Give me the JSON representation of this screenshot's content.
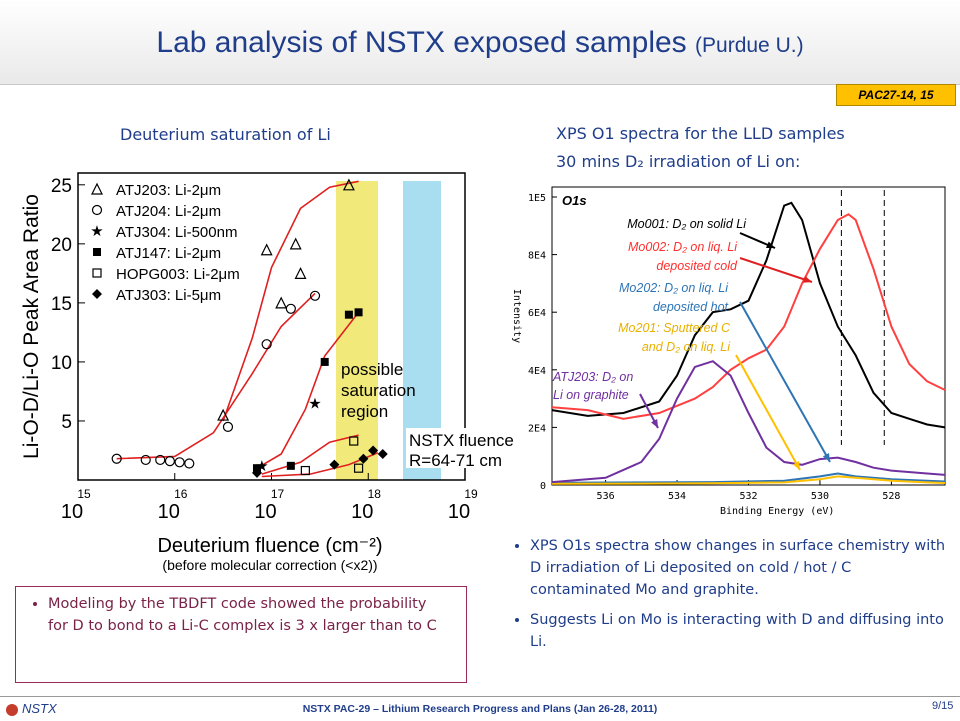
{
  "header": {
    "title": "Lab analysis of NSTX exposed samples",
    "subtitle": "(Purdue U.)",
    "badge": "PAC27-14, 15"
  },
  "left_section_title": "Deuterium saturation of Li",
  "right_section_title_line1": "XPS O1 spectra for the LLD samples",
  "right_section_title_line2": "30 mins D₂ irradiation of Li on:",
  "chart_data": [
    {
      "type": "scatter",
      "ylabel": "Li-O-D/Li-O Peak Area Ratio",
      "xlabel": "Deuterium fluence (cm⁻²)",
      "xlabel_note": "(before molecular correction (<x2))",
      "x_scale": "log",
      "x_ticks": [
        {
          "base": "10",
          "exp": "15"
        },
        {
          "base": "10",
          "exp": "16"
        },
        {
          "base": "10",
          "exp": "17"
        },
        {
          "base": "10",
          "exp": "18"
        },
        {
          "base": "10",
          "exp": "19"
        }
      ],
      "y_ticks": [
        "5",
        "10",
        "15",
        "20",
        "25"
      ],
      "ylim": [
        0,
        26
      ],
      "series": [
        {
          "name": "ATJ203: Li-2μm",
          "marker": "triangle-open",
          "points": [
            [
              16.5,
              5.5
            ],
            [
              16.95,
              19.5
            ],
            [
              17.1,
              15
            ],
            [
              17.25,
              20
            ],
            [
              17.3,
              17.5
            ],
            [
              17.8,
              25
            ]
          ]
        },
        {
          "name": "ATJ204: Li-2μm",
          "marker": "circle-open",
          "points": [
            [
              15.4,
              1.8
            ],
            [
              15.7,
              1.7
            ],
            [
              15.85,
              1.7
            ],
            [
              15.95,
              1.6
            ],
            [
              16.05,
              1.5
            ],
            [
              16.15,
              1.4
            ],
            [
              16.55,
              4.5
            ],
            [
              16.95,
              11.5
            ],
            [
              17.2,
              14.5
            ],
            [
              17.45,
              15.6
            ]
          ]
        },
        {
          "name": "ATJ304: Li-500nm",
          "marker": "star",
          "points": [
            [
              16.9,
              1.2
            ],
            [
              17.45,
              6.5
            ]
          ]
        },
        {
          "name": "ATJ147: Li-2μm",
          "marker": "square-filled",
          "points": [
            [
              16.85,
              1.0
            ],
            [
              17.2,
              1.2
            ],
            [
              17.55,
              10.0
            ],
            [
              17.8,
              14.0
            ],
            [
              17.9,
              14.2
            ]
          ]
        },
        {
          "name": "HOPG003: Li-2μm",
          "marker": "square-open",
          "points": [
            [
              17.35,
              0.8
            ],
            [
              17.85,
              3.3
            ],
            [
              17.9,
              1.0
            ]
          ]
        },
        {
          "name": "ATJ303: Li-5μm",
          "marker": "diamond-filled",
          "points": [
            [
              16.85,
              0.6
            ],
            [
              17.65,
              1.3
            ],
            [
              17.95,
              1.8
            ],
            [
              18.05,
              2.5
            ],
            [
              18.15,
              2.2
            ]
          ]
        }
      ],
      "annotations": {
        "region_label_1": "possible",
        "region_label_2": "saturation",
        "region_label_3": "region",
        "fluence_label_1": "NSTX fluence",
        "fluence_label_2": "R=64-71 cm"
      }
    },
    {
      "type": "line",
      "panel_label": "O1s",
      "xlabel": "Binding Energy (eV)",
      "ylabel": "Intensity",
      "x_reversed": true,
      "x_ticks": [
        "536",
        "534",
        "532",
        "530",
        "528"
      ],
      "y_ticks": [
        "0",
        "2E4",
        "4E4",
        "6E4",
        "8E4",
        "1E5"
      ],
      "xlim": [
        537.5,
        526.5
      ],
      "ylim": [
        0,
        100000
      ],
      "series": [
        {
          "name": "Mo001: D₂ on solid Li",
          "color": "#000000",
          "x": [
            537.5,
            536.5,
            535.5,
            534.5,
            534,
            533.5,
            533,
            532.5,
            532,
            531.5,
            531,
            530.8,
            530.5,
            530,
            529.5,
            529,
            528.5,
            528,
            527.5,
            527,
            526.5
          ],
          "y": [
            26000,
            24000,
            25000,
            29000,
            38000,
            52000,
            60000,
            61000,
            64000,
            78000,
            97000,
            98000,
            92000,
            70000,
            55000,
            45000,
            32000,
            25000,
            23000,
            21000,
            20000
          ]
        },
        {
          "name": "Mo002: D₂ on liq. Li deposited cold",
          "color": "#ff4040",
          "x": [
            537.5,
            536.5,
            535.5,
            534.5,
            533.5,
            533,
            532.5,
            532,
            531.5,
            531,
            530.5,
            530,
            529.5,
            529.2,
            529,
            528.5,
            528,
            527.5,
            527,
            526.5
          ],
          "y": [
            27000,
            26000,
            23000,
            25000,
            30000,
            34000,
            40000,
            44000,
            47000,
            55000,
            70000,
            82000,
            92000,
            94000,
            92000,
            75000,
            55000,
            42000,
            36000,
            33000
          ]
        },
        {
          "name": "Mo202: D₂ on liq. Li deposited hot",
          "color": "#2e75b6",
          "x": [
            537.5,
            535,
            533,
            531,
            530,
            529.5,
            529,
            528,
            527,
            526.5
          ],
          "y": [
            800,
            900,
            1000,
            1500,
            3000,
            4000,
            3000,
            2000,
            1500,
            1200
          ]
        },
        {
          "name": "Mo201: Sputtered C and D₂ on liq. Li",
          "color": "#ffc000",
          "x": [
            537.5,
            535,
            533,
            531,
            530,
            529.5,
            529,
            528,
            527,
            526.5
          ],
          "y": [
            400,
            500,
            600,
            900,
            2000,
            3000,
            2500,
            1500,
            900,
            700
          ]
        },
        {
          "name": "ATJ203: D₂ on Li on graphite",
          "color": "#7030a0",
          "x": [
            537.5,
            536,
            535,
            534.5,
            534,
            533.5,
            533,
            532.5,
            532,
            531.5,
            531,
            530.5,
            530,
            529.5,
            529,
            528.5,
            528,
            527,
            526.5
          ],
          "y": [
            1000,
            2500,
            8000,
            16000,
            30000,
            41000,
            43000,
            38000,
            25000,
            13000,
            8000,
            7000,
            9000,
            9500,
            8000,
            6000,
            5000,
            4000,
            3500
          ]
        }
      ],
      "dashed_lines_x": [
        529.4,
        528.2
      ]
    }
  ],
  "right_bullets": [
    "XPS O1s spectra show changes in surface chemistry with D irradiation of Li deposited on cold / hot / C contaminated Mo and graphite.",
    "Suggests Li on Mo is interacting with D and diffusing into Li."
  ],
  "box_bullet": "Modeling by the TBDFT code showed the probability for D to bond to a Li-C complex is 3 x larger than to C",
  "footer": {
    "logo": "NSTX",
    "text": "NSTX PAC-29 – Lithium Research Progress and Plans (Jan 26-28, 2011)",
    "page": "9/15"
  }
}
